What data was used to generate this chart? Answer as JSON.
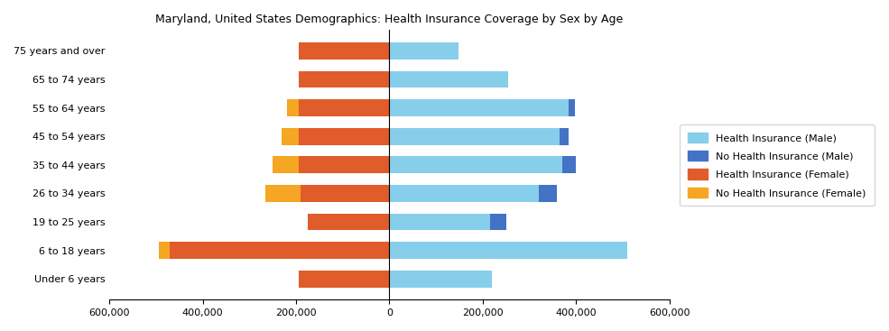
{
  "title": "Maryland, United States Demographics: Health Insurance Coverage by Sex by Age",
  "age_groups": [
    "Under 6 years",
    "6 to 18 years",
    "19 to 25 years",
    "26 to 34 years",
    "35 to 44 years",
    "45 to 54 years",
    "55 to 64 years",
    "65 to 74 years",
    "75 years and over"
  ],
  "health_ins_male": [
    220000,
    510000,
    215000,
    320000,
    370000,
    365000,
    385000,
    255000,
    148000
  ],
  "no_health_ins_male": [
    0,
    0,
    35000,
    40000,
    30000,
    20000,
    12000,
    0,
    0
  ],
  "health_ins_female": [
    195000,
    470000,
    175000,
    190000,
    195000,
    195000,
    195000,
    195000,
    195000
  ],
  "no_health_ins_female": [
    0,
    25000,
    0,
    75000,
    55000,
    35000,
    25000,
    0,
    0
  ],
  "colors": {
    "health_ins_male": "#87CEEB",
    "no_health_ins_male": "#4472C4",
    "health_ins_female": "#E05C2A",
    "no_health_ins_female": "#F5A623"
  },
  "xlim": [
    -600000,
    600000
  ],
  "xticks": [
    -600000,
    -400000,
    -200000,
    0,
    200000,
    400000,
    600000
  ],
  "xticklabels": [
    "600,000",
    "400,000",
    "200,000",
    "0",
    "200,000",
    "400,000",
    "600,000"
  ],
  "legend_labels": [
    "Health Insurance (Male)",
    "No Health Insurance (Male)",
    "Health Insurance (Female)",
    "No Health Insurance (Female)"
  ],
  "legend_colors": [
    "#87CEEB",
    "#4472C4",
    "#E05C2A",
    "#F5A623"
  ]
}
